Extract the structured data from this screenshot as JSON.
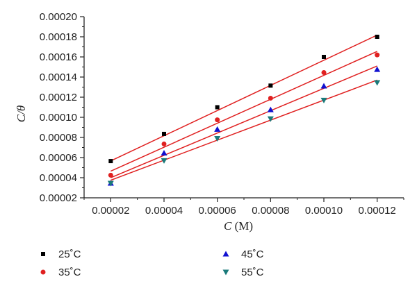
{
  "chart_data": {
    "type": "scatter",
    "xlabel": "C (M)",
    "ylabel": "C/θ",
    "xlim": [
      1e-05,
      0.00013
    ],
    "ylim": [
      2e-05,
      0.0002
    ],
    "x_ticks": [
      "0.00002",
      "0.00004",
      "0.00006",
      "0.00008",
      "0.00010",
      "0.00012"
    ],
    "x_tick_values": [
      2e-05,
      4e-05,
      6e-05,
      8e-05,
      0.0001,
      0.00012
    ],
    "y_ticks": [
      "0.00002",
      "0.00004",
      "0.00006",
      "0.00008",
      "0.00010",
      "0.00012",
      "0.00014",
      "0.00016",
      "0.00018",
      "0.00020"
    ],
    "y_tick_values": [
      2e-05,
      4e-05,
      6e-05,
      8e-05,
      0.0001,
      0.00012,
      0.00014,
      0.00016,
      0.00018,
      0.0002
    ],
    "grid": false,
    "legend_placement": "bottom",
    "fit_line_color": "#e02020",
    "series": [
      {
        "name": "25˚C",
        "marker": "square",
        "color": "#000000",
        "x": [
          2e-05,
          4e-05,
          6e-05,
          8e-05,
          0.0001,
          0.00012
        ],
        "y": [
          5.65e-05,
          8.35e-05,
          0.00011,
          0.0001315,
          0.00016,
          0.00018
        ],
        "fit": [
          5.67e-05,
          0.0001817
        ]
      },
      {
        "name": "35˚C",
        "marker": "circle",
        "color": "#e02020",
        "x": [
          2e-05,
          4e-05,
          6e-05,
          8e-05,
          0.0001,
          0.00012
        ],
        "y": [
          4.25e-05,
          7.35e-05,
          9.75e-05,
          0.000119,
          0.0001445,
          0.000162
        ],
        "fit": [
          4.65e-05,
          0.0001655
        ]
      },
      {
        "name": "45˚C",
        "marker": "triangle-up",
        "color": "#1010d0",
        "x": [
          2e-05,
          4e-05,
          6e-05,
          8e-05,
          0.0001,
          0.00012
        ],
        "y": [
          3.45e-05,
          6.45e-05,
          8.8e-05,
          0.0001075,
          0.000131,
          0.0001475
        ],
        "fit": [
          4e-05,
          0.000151
        ]
      },
      {
        "name": "55˚C",
        "marker": "triangle-down",
        "color": "#1a7a7a",
        "x": [
          2e-05,
          4e-05,
          6e-05,
          8e-05,
          0.0001,
          0.00012
        ],
        "y": [
          3.45e-05,
          5.7e-05,
          7.9e-05,
          9.85e-05,
          0.000117,
          0.0001345
        ],
        "fit": [
          3.75e-05,
          0.000137
        ]
      }
    ]
  }
}
